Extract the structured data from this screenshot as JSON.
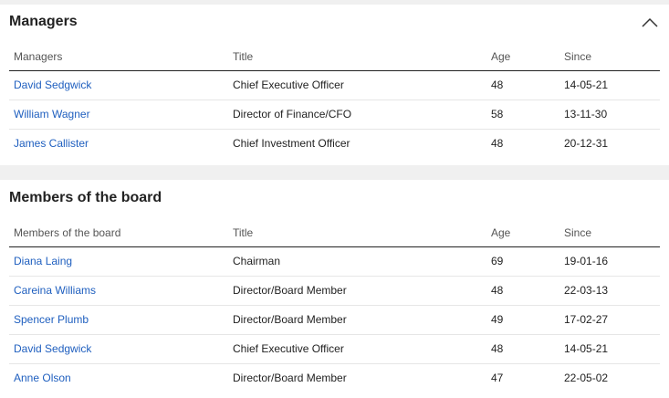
{
  "managers": {
    "title": "Managers",
    "headers": [
      "Managers",
      "Title",
      "Age",
      "Since"
    ],
    "rows": [
      {
        "name": "David Sedgwick",
        "title": "Chief Executive Officer",
        "age": "48",
        "since": "14-05-21"
      },
      {
        "name": "William Wagner",
        "title": "Director of Finance/CFO",
        "age": "58",
        "since": "13-11-30"
      },
      {
        "name": "James Callister",
        "title": "Chief Investment Officer",
        "age": "48",
        "since": "20-12-31"
      }
    ]
  },
  "board": {
    "title": "Members of the board",
    "headers": [
      "Members of the board",
      "Title",
      "Age",
      "Since"
    ],
    "rows": [
      {
        "name": "Diana Laing",
        "title": "Chairman",
        "age": "69",
        "since": "19-01-16"
      },
      {
        "name": "Careina Williams",
        "title": "Director/Board Member",
        "age": "48",
        "since": "22-03-13"
      },
      {
        "name": "Spencer Plumb",
        "title": "Director/Board Member",
        "age": "49",
        "since": "17-02-27"
      },
      {
        "name": "David Sedgwick",
        "title": "Chief Executive Officer",
        "age": "48",
        "since": "14-05-21"
      },
      {
        "name": "Anne Olson",
        "title": "Director/Board Member",
        "age": "47",
        "since": "22-05-02"
      }
    ]
  },
  "icons": {
    "collapse": "chevron-up-icon"
  },
  "colors": {
    "link": "#1f5fbf",
    "background": "#f0f0f0"
  }
}
